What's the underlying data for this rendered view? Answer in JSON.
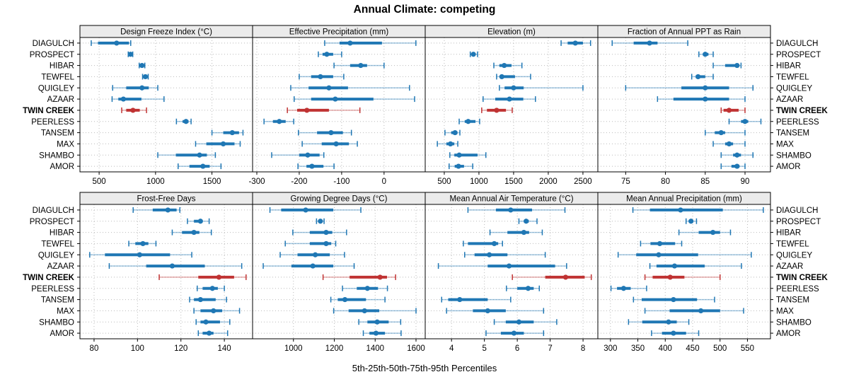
{
  "title": "Annual Climate: competing",
  "caption": "5th-25th-50th-75th-95th Percentiles",
  "percentile_labels": [
    "5th",
    "25th",
    "50th",
    "75th",
    "95th"
  ],
  "stations": [
    "DIAGULCH",
    "PROSPECT",
    "HIBAR",
    "TEWFEL",
    "QUIGLEY",
    "AZAAR",
    "TWIN CREEK",
    "PEERLESS",
    "TANSEM",
    "MAX",
    "SHAMBO",
    "AMOR"
  ],
  "highlight_station": "TWIN CREEK",
  "colors": {
    "series": "#1f77b4",
    "highlight": "#c03333",
    "strip_bg": "#ebebeb",
    "grid": "#bbbbbb",
    "border": "#000000",
    "text": "#000000"
  },
  "chart_data": {
    "type": "dotplot-percentile-intervals",
    "layout": {
      "rows": 2,
      "cols": 4
    },
    "note": "values are [5th,25th,50th,75th,95th] percentiles per station",
    "panels": [
      {
        "title": "Design Freeze Index (°C)",
        "row": 0,
        "col": 0,
        "xlim": [
          330,
          1860
        ],
        "ticks": [
          500,
          1000,
          1500
        ],
        "values": {
          "DIAGULCH": [
            430,
            490,
            655,
            765,
            780
          ],
          "PROSPECT": [
            758,
            768,
            778,
            788,
            798
          ],
          "HIBAR": [
            855,
            868,
            880,
            892,
            905
          ],
          "TEWFEL": [
            885,
            897,
            910,
            922,
            935
          ],
          "QUIGLEY": [
            620,
            740,
            880,
            940,
            1020
          ],
          "AZAAR": [
            615,
            670,
            715,
            875,
            1075
          ],
          "TWIN CREEK": [
            700,
            740,
            800,
            860,
            920
          ],
          "PEERLESS": [
            1185,
            1240,
            1270,
            1292,
            1315
          ],
          "TANSEM": [
            1500,
            1600,
            1680,
            1740,
            1775
          ],
          "MAX": [
            1355,
            1450,
            1600,
            1700,
            1750
          ],
          "SHAMBO": [
            1020,
            1180,
            1390,
            1455,
            1530
          ],
          "AMOR": [
            1200,
            1300,
            1420,
            1480,
            1580
          ]
        }
      },
      {
        "title": "Effective Precipitation (mm)",
        "row": 0,
        "col": 1,
        "xlim": [
          -310,
          97
        ],
        "ticks": [
          -300,
          -200,
          -100,
          0
        ],
        "values": {
          "DIAGULCH": [
            -140,
            -105,
            -80,
            -5,
            75
          ],
          "PROSPECT": [
            -155,
            -145,
            -135,
            -120,
            -100
          ],
          "HIBAR": [
            -118,
            -80,
            -55,
            -40,
            0
          ],
          "TEWFEL": [
            -200,
            -172,
            -150,
            -120,
            -95
          ],
          "QUIGLEY": [
            -220,
            -178,
            -130,
            -85,
            60
          ],
          "AZAAR": [
            -212,
            -172,
            -115,
            -25,
            72
          ],
          "TWIN CREEK": [
            -228,
            -205,
            -182,
            -130,
            -57
          ],
          "PEERLESS": [
            -283,
            -262,
            -247,
            -232,
            -213
          ],
          "TANSEM": [
            -202,
            -158,
            -125,
            -97,
            -77
          ],
          "MAX": [
            -193,
            -147,
            -113,
            -83,
            -63
          ],
          "SHAMBO": [
            -265,
            -200,
            -180,
            -152,
            -142
          ],
          "AMOR": [
            -203,
            -183,
            -170,
            -143,
            -118
          ]
        }
      },
      {
        "title": "Elevation (m)",
        "row": 0,
        "col": 2,
        "xlim": [
          225,
          2715
        ],
        "ticks": [
          500,
          1000,
          1500,
          2000,
          2500
        ],
        "values": {
          "DIAGULCH": [
            2185,
            2280,
            2390,
            2500,
            2610
          ],
          "PROSPECT": [
            875,
            900,
            920,
            945,
            980
          ],
          "HIBAR": [
            1215,
            1295,
            1365,
            1470,
            1620
          ],
          "TEWFEL": [
            1255,
            1300,
            1330,
            1520,
            1745
          ],
          "QUIGLEY": [
            1295,
            1370,
            1500,
            1645,
            2500
          ],
          "AZAAR": [
            1060,
            1235,
            1440,
            1640,
            1815
          ],
          "TWIN CREEK": [
            1040,
            1115,
            1255,
            1390,
            1480
          ],
          "PEERLESS": [
            715,
            795,
            845,
            950,
            1010
          ],
          "TANSEM": [
            510,
            600,
            655,
            690,
            725
          ],
          "MAX": [
            400,
            530,
            590,
            645,
            695
          ],
          "SHAMBO": [
            580,
            645,
            715,
            980,
            1100
          ],
          "AMOR": [
            570,
            650,
            705,
            785,
            910
          ]
        }
      },
      {
        "title": "Fraction of Annual PPT as Rain",
        "row": 0,
        "col": 3,
        "xlim": [
          71.5,
          93.2
        ],
        "ticks": [
          75,
          80,
          85,
          90
        ],
        "values": {
          "DIAGULCH": [
            73.3,
            76,
            78,
            79,
            82.8
          ],
          "PROSPECT": [
            84.2,
            84.7,
            85,
            85.4,
            86
          ],
          "HIBAR": [
            86,
            87.5,
            89,
            89.2,
            89.5
          ],
          "TEWFEL": [
            83.3,
            83.8,
            84.1,
            85,
            86
          ],
          "QUIGLEY": [
            75,
            82,
            85,
            88,
            91
          ],
          "AZAAR": [
            79,
            81,
            85,
            88,
            90
          ],
          "TWIN CREEK": [
            87,
            87.3,
            88,
            89.2,
            90
          ],
          "PEERLESS": [
            88,
            89.5,
            90,
            90.4,
            92
          ],
          "TANSEM": [
            85,
            86.2,
            87,
            87.5,
            90
          ],
          "MAX": [
            86,
            87.5,
            88,
            88.5,
            90
          ],
          "SHAMBO": [
            87,
            88.5,
            89,
            89.5,
            91
          ],
          "AMOR": [
            87,
            88.3,
            89,
            89.3,
            90
          ]
        }
      },
      {
        "title": "Frost-Free Days",
        "row": 1,
        "col": 0,
        "xlim": [
          73.5,
          153
        ],
        "ticks": [
          80,
          100,
          120,
          140
        ],
        "values": {
          "DIAGULCH": [
            98,
            107,
            114,
            118,
            119.5
          ],
          "PROSPECT": [
            123,
            126,
            129,
            130,
            133
          ],
          "HIBAR": [
            116,
            120.5,
            126,
            128.5,
            134
          ],
          "TEWFEL": [
            96,
            99,
            102.5,
            105,
            108.5
          ],
          "QUIGLEY": [
            78,
            85,
            101,
            115,
            125
          ],
          "AZAAR": [
            87,
            104,
            116,
            131,
            148
          ],
          "TWIN CREEK": [
            110,
            128,
            137.5,
            144.5,
            150
          ],
          "PEERLESS": [
            127.5,
            130,
            134.5,
            137,
            140
          ],
          "TANSEM": [
            124,
            126,
            129,
            136,
            141
          ],
          "MAX": [
            126,
            129,
            135,
            139,
            147
          ],
          "SHAMBO": [
            127,
            129,
            131.5,
            138,
            142.5
          ],
          "AMOR": [
            128,
            130,
            133,
            135,
            141.5
          ]
        }
      },
      {
        "title": "Growing Degree Days (°C)",
        "row": 1,
        "col": 1,
        "xlim": [
          800,
          1645
        ],
        "ticks": [
          1000,
          1200,
          1400,
          1600
        ],
        "values": {
          "DIAGULCH": [
            885,
            940,
            1060,
            1195,
            1330
          ],
          "PROSPECT": [
            1113,
            1125,
            1132,
            1140,
            1150
          ],
          "HIBAR": [
            997,
            1080,
            1160,
            1190,
            1260
          ],
          "TEWFEL": [
            960,
            1080,
            1160,
            1185,
            1207
          ],
          "QUIGLEY": [
            935,
            1020,
            1107,
            1178,
            1250
          ],
          "AZAAR": [
            852,
            990,
            1095,
            1195,
            1297
          ],
          "TWIN CREEK": [
            1145,
            1275,
            1424,
            1458,
            1500
          ],
          "PEERLESS": [
            1240,
            1310,
            1362,
            1414,
            1460
          ],
          "TANSEM": [
            1183,
            1217,
            1252,
            1355,
            1448
          ],
          "MAX": [
            1197,
            1270,
            1348,
            1420,
            1600
          ],
          "SHAMBO": [
            1320,
            1362,
            1410,
            1466,
            1525
          ],
          "AMOR": [
            1342,
            1372,
            1404,
            1448,
            1527
          ]
        }
      },
      {
        "title": "Mean Annual Air Temperature (°C)",
        "row": 1,
        "col": 2,
        "xlim": [
          3.2,
          8.45
        ],
        "ticks": [
          4,
          5,
          6,
          7,
          8
        ],
        "values": {
          "DIAGULCH": [
            4.5,
            5.35,
            5.8,
            6.45,
            7.45
          ],
          "PROSPECT": [
            6.05,
            6.2,
            6.27,
            6.35,
            6.6
          ],
          "HIBAR": [
            5.17,
            5.7,
            6.2,
            6.36,
            6.76
          ],
          "TEWFEL": [
            4.36,
            4.5,
            5.3,
            5.42,
            5.55
          ],
          "QUIGLEY": [
            4.4,
            4.7,
            5.15,
            5.7,
            6.85
          ],
          "AZAAR": [
            3.6,
            5.1,
            5.75,
            7.15,
            7.5
          ],
          "TWIN CREEK": [
            5.85,
            6.85,
            7.47,
            8.05,
            8.25
          ],
          "PEERLESS": [
            5.67,
            6.0,
            6.33,
            6.5,
            6.67
          ],
          "TANSEM": [
            3.7,
            3.9,
            4.25,
            5.1,
            5.8
          ],
          "MAX": [
            3.85,
            4.65,
            5.1,
            5.65,
            6.8
          ],
          "SHAMBO": [
            5.3,
            5.65,
            6.05,
            6.5,
            7.2
          ],
          "AMOR": [
            5.05,
            5.5,
            5.9,
            6.2,
            6.8
          ]
        }
      },
      {
        "title": "Mean Annual Precipitation (mm)",
        "row": 1,
        "col": 3,
        "xlim": [
          277,
          592
        ],
        "ticks": [
          300,
          350,
          400,
          450,
          500,
          550
        ],
        "values": {
          "DIAGULCH": [
            341,
            372,
            428,
            505,
            579
          ],
          "PROSPECT": [
            438,
            443,
            447,
            451,
            457
          ],
          "HIBAR": [
            425,
            461,
            487,
            500,
            519
          ],
          "TEWFEL": [
            355,
            373,
            390,
            418,
            430
          ],
          "QUIGLEY": [
            314,
            347,
            388,
            460,
            557
          ],
          "AZAAR": [
            372,
            384,
            417,
            472,
            539
          ],
          "TWIN CREEK": [
            363,
            377,
            409,
            435,
            500
          ],
          "PEERLESS": [
            301,
            312,
            324,
            337,
            366
          ],
          "TANSEM": [
            342,
            357,
            415,
            458,
            490
          ],
          "MAX": [
            363,
            408,
            465,
            500,
            543
          ],
          "SHAMBO": [
            333,
            358,
            406,
            421,
            443
          ],
          "AMOR": [
            375,
            394,
            415,
            438,
            461
          ]
        }
      }
    ]
  }
}
